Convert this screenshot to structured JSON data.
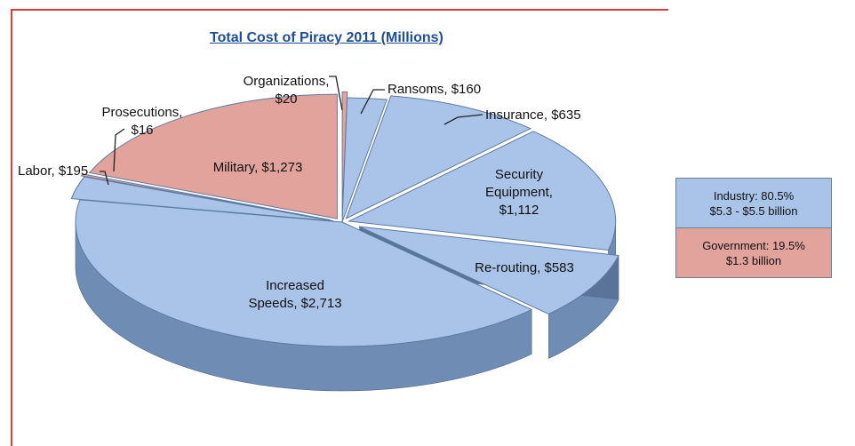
{
  "chart_data": {
    "type": "pie",
    "title": "Total Cost of Piracy 2011 (Millions)",
    "unit": "Millions USD",
    "slices": [
      {
        "label": "Organizations, $20",
        "value": 20,
        "group": "Government",
        "color": "#e3a39d"
      },
      {
        "label": "Ransoms, $160",
        "value": 160,
        "group": "Industry",
        "color": "#a9c4e8"
      },
      {
        "label": "Insurance, $635",
        "value": 635,
        "group": "Industry",
        "color": "#a9c4e8"
      },
      {
        "label": "Security Equipment, $1,112",
        "value": 1112,
        "group": "Industry",
        "color": "#a9c4e8"
      },
      {
        "label": "Re-routing, $583",
        "value": 583,
        "group": "Industry",
        "color": "#a9c4e8"
      },
      {
        "label": "Increased Speeds, $2,713",
        "value": 2713,
        "group": "Industry",
        "color": "#a9c4e8"
      },
      {
        "label": "Labor, $195",
        "value": 195,
        "group": "Industry",
        "color": "#a9c4e8"
      },
      {
        "label": "Prosecutions, $16",
        "value": 16,
        "group": "Government",
        "color": "#e3a39d"
      },
      {
        "label": "Military, $1,273",
        "value": 1273,
        "group": "Government",
        "color": "#e3a39d"
      }
    ],
    "legend": [
      {
        "line1": "Industry: 80.5%",
        "line2": "$5.3 - $5.5 billion",
        "color": "#a9c4e8"
      },
      {
        "line1": "Government: 19.5%",
        "line2": "$1.3 billion",
        "color": "#e3a39d"
      }
    ],
    "legend_position": "right"
  },
  "labels": {
    "organizations": [
      "Organizations,",
      "$20"
    ],
    "ransoms": [
      "Ransoms, $160"
    ],
    "insurance": [
      "Insurance, $635"
    ],
    "security": [
      "Security",
      "Equipment,",
      "$1,112"
    ],
    "rerouting": [
      "Re-routing, $583"
    ],
    "speeds": [
      "Increased",
      "Speeds, $2,713"
    ],
    "labor": [
      "Labor, $195"
    ],
    "prosecutions": [
      "Prosecutions,",
      "$16"
    ],
    "military": [
      "Military, $1,273"
    ]
  },
  "colors": {
    "frame": "#e03a3a",
    "title": "#1f4e99",
    "industry": "#a9c4e8",
    "industry_side": "#6f8db4",
    "government": "#e3a39d",
    "government_side": "#a8645d"
  }
}
